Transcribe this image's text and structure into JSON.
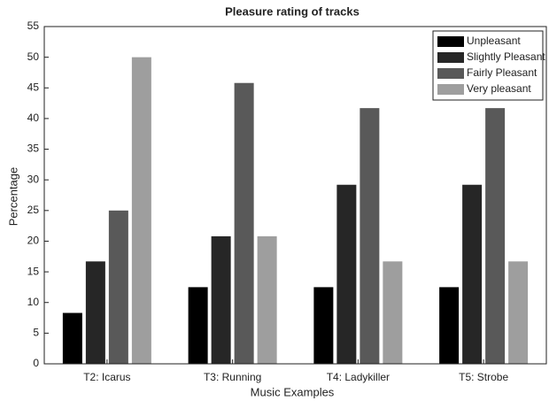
{
  "chart_data": {
    "type": "bar",
    "title": "Pleasure rating of tracks",
    "xlabel": "Music Examples",
    "ylabel": "Percentage",
    "categories": [
      "T2: Icarus",
      "T3: Running",
      "T4: Ladykiller",
      "T5: Strobe"
    ],
    "series": [
      {
        "name": "Unpleasant",
        "color": "#000000",
        "values": [
          8.3,
          12.5,
          12.5,
          12.5
        ]
      },
      {
        "name": "Slightly Pleasant",
        "color": "#262626",
        "values": [
          16.7,
          20.8,
          29.2,
          29.2
        ]
      },
      {
        "name": "Fairly Pleasant",
        "color": "#595959",
        "values": [
          25,
          45.8,
          41.7,
          41.7
        ]
      },
      {
        "name": "Very pleasant",
        "color": "#9e9e9e",
        "values": [
          50,
          20.8,
          16.7,
          16.7
        ]
      }
    ],
    "ylim": [
      0,
      55
    ],
    "yticks": [
      0,
      5,
      10,
      15,
      20,
      25,
      30,
      35,
      40,
      45,
      50,
      55
    ],
    "grid": false,
    "legend": "upper right"
  }
}
